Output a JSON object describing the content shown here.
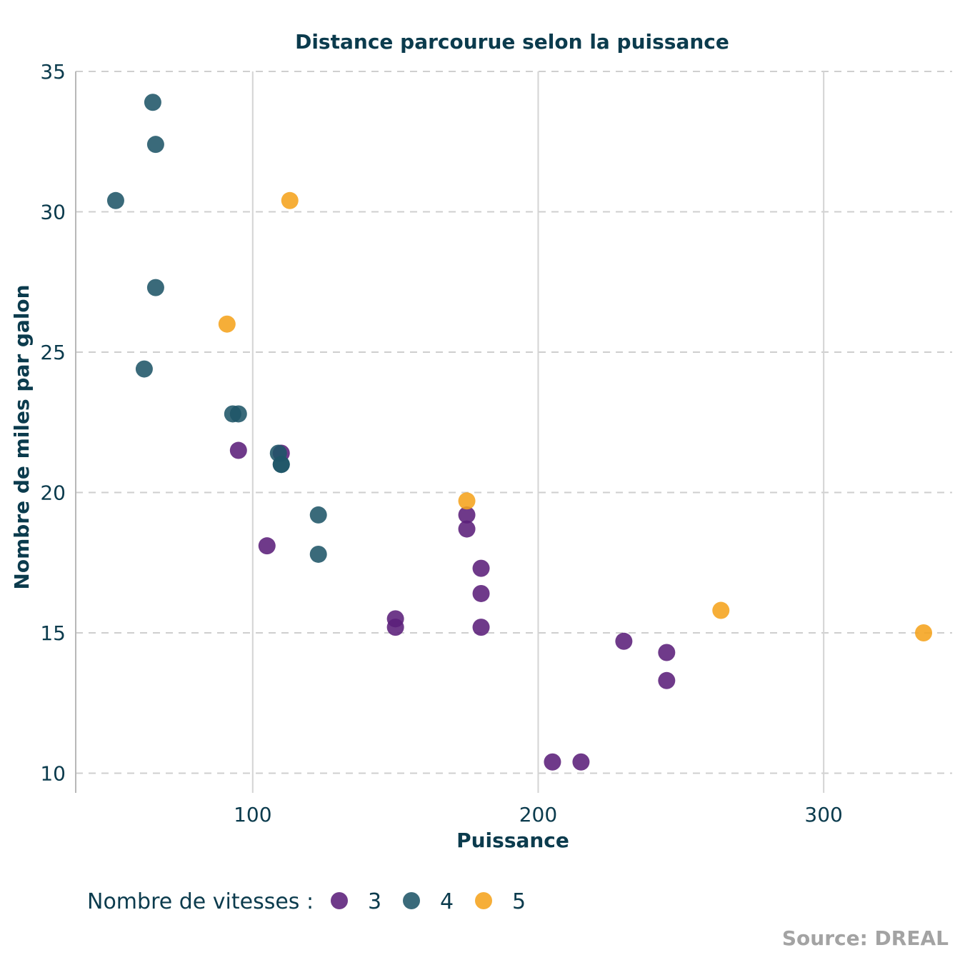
{
  "chart_data": {
    "type": "scatter",
    "title": "Distance parcourue selon la puissance",
    "xlabel": "Puissance",
    "ylabel": "Nombre de miles par galon",
    "caption": "Source: DREAL",
    "xlim": [
      38,
      345
    ],
    "ylim": [
      9.3,
      35
    ],
    "xticks": [
      "100",
      "200",
      "300"
    ],
    "yticks": [
      "10",
      "15",
      "20",
      "25",
      "30",
      "35"
    ],
    "grid": {
      "x": "solid",
      "y": "dashed"
    },
    "legend": {
      "title": "Nombre de vitesses :",
      "position": "bottom-left"
    },
    "series": [
      {
        "name": "3",
        "color": "#5b1f7a",
        "points": [
          [
            95,
            21.5
          ],
          [
            105,
            18.1
          ],
          [
            110,
            21.4
          ],
          [
            150,
            15.5
          ],
          [
            150,
            15.2
          ],
          [
            175,
            19.2
          ],
          [
            175,
            18.7
          ],
          [
            180,
            17.3
          ],
          [
            180,
            16.4
          ],
          [
            180,
            15.2
          ],
          [
            205,
            10.4
          ],
          [
            215,
            10.4
          ],
          [
            230,
            14.7
          ],
          [
            245,
            14.3
          ],
          [
            245,
            13.3
          ]
        ]
      },
      {
        "name": "4",
        "color": "#1f5568",
        "points": [
          [
            52,
            30.4
          ],
          [
            62,
            24.4
          ],
          [
            65,
            33.9
          ],
          [
            66,
            32.4
          ],
          [
            66,
            27.3
          ],
          [
            93,
            22.8
          ],
          [
            95,
            22.8
          ],
          [
            109,
            21.4
          ],
          [
            110,
            21.0
          ],
          [
            110,
            21.0
          ],
          [
            123,
            19.2
          ],
          [
            123,
            17.8
          ]
        ]
      },
      {
        "name": "5",
        "color": "#f5a31c",
        "points": [
          [
            91,
            26.0
          ],
          [
            113,
            30.4
          ],
          [
            175,
            19.7
          ],
          [
            264,
            15.8
          ],
          [
            335,
            15.0
          ]
        ]
      }
    ]
  }
}
